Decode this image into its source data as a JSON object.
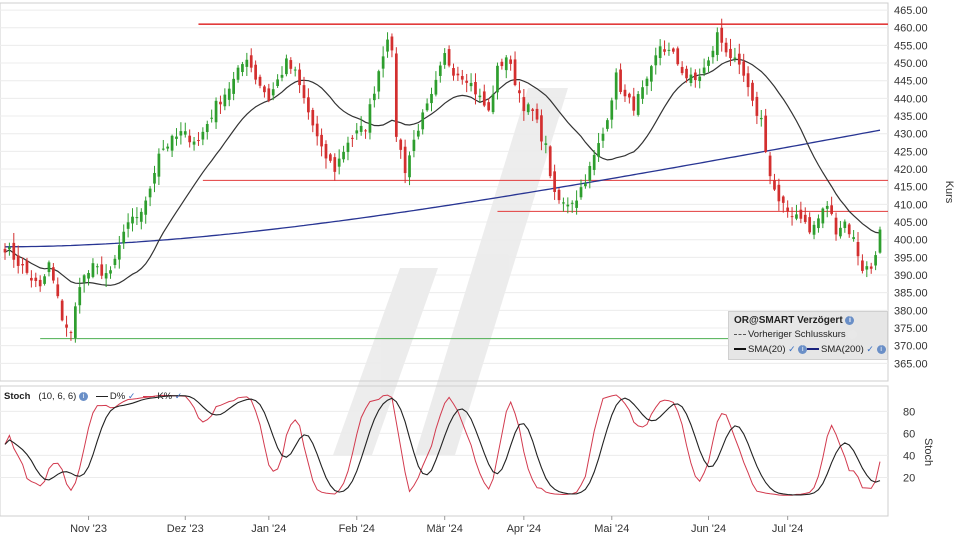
{
  "chart_data": [
    {
      "type": "candlestick",
      "title": "",
      "ylabel": "Kurs",
      "ylim": [
        360,
        467
      ],
      "y_ticks": [
        "365.00",
        "370.00",
        "375.00",
        "380.00",
        "385.00",
        "390.00",
        "395.00",
        "400.00",
        "405.00",
        "410.00",
        "415.00",
        "420.00",
        "425.00",
        "430.00",
        "435.00",
        "440.00",
        "445.00",
        "450.00",
        "455.00",
        "460.00",
        "465.00"
      ],
      "x_ticks": [
        "Nov '23",
        "Dez '23",
        "Jan '24",
        "Feb '24",
        "Mär '24",
        "Apr '24",
        "Mai '24",
        "Jun '24",
        "Jul '24"
      ],
      "close_anchors": [
        {
          "t": 0,
          "v": 398
        },
        {
          "t": 4,
          "v": 392
        },
        {
          "t": 8,
          "v": 386
        },
        {
          "t": 10,
          "v": 393
        },
        {
          "t": 13,
          "v": 378
        },
        {
          "t": 15,
          "v": 373
        },
        {
          "t": 17,
          "v": 388
        },
        {
          "t": 20,
          "v": 392
        },
        {
          "t": 24,
          "v": 390
        },
        {
          "t": 27,
          "v": 402
        },
        {
          "t": 32,
          "v": 410
        },
        {
          "t": 35,
          "v": 425
        },
        {
          "t": 40,
          "v": 430
        },
        {
          "t": 44,
          "v": 428
        },
        {
          "t": 48,
          "v": 438
        },
        {
          "t": 52,
          "v": 445
        },
        {
          "t": 55,
          "v": 452
        },
        {
          "t": 57,
          "v": 446
        },
        {
          "t": 60,
          "v": 440
        },
        {
          "t": 64,
          "v": 450
        },
        {
          "t": 66,
          "v": 447
        },
        {
          "t": 69,
          "v": 436
        },
        {
          "t": 72,
          "v": 425
        },
        {
          "t": 75,
          "v": 420
        },
        {
          "t": 78,
          "v": 428
        },
        {
          "t": 82,
          "v": 432
        },
        {
          "t": 85,
          "v": 448
        },
        {
          "t": 87,
          "v": 458
        },
        {
          "t": 88,
          "v": 452
        },
        {
          "t": 89,
          "v": 430
        },
        {
          "t": 91,
          "v": 420
        },
        {
          "t": 94,
          "v": 432
        },
        {
          "t": 97,
          "v": 440
        },
        {
          "t": 100,
          "v": 452
        },
        {
          "t": 102,
          "v": 448
        },
        {
          "t": 105,
          "v": 446
        },
        {
          "t": 108,
          "v": 440
        },
        {
          "t": 110,
          "v": 436
        },
        {
          "t": 112,
          "v": 448
        },
        {
          "t": 114,
          "v": 452
        },
        {
          "t": 116,
          "v": 445
        },
        {
          "t": 118,
          "v": 438
        },
        {
          "t": 120,
          "v": 436
        },
        {
          "t": 123,
          "v": 426
        },
        {
          "t": 125,
          "v": 412
        },
        {
          "t": 127,
          "v": 410
        },
        {
          "t": 130,
          "v": 412
        },
        {
          "t": 133,
          "v": 420
        },
        {
          "t": 136,
          "v": 430
        },
        {
          "t": 139,
          "v": 446
        },
        {
          "t": 141,
          "v": 440
        },
        {
          "t": 143,
          "v": 438
        },
        {
          "t": 146,
          "v": 444
        },
        {
          "t": 149,
          "v": 455
        },
        {
          "t": 152,
          "v": 452
        },
        {
          "t": 155,
          "v": 446
        },
        {
          "t": 157,
          "v": 445
        },
        {
          "t": 160,
          "v": 450
        },
        {
          "t": 162,
          "v": 458
        },
        {
          "t": 164,
          "v": 454
        },
        {
          "t": 166,
          "v": 450
        },
        {
          "t": 168,
          "v": 446
        },
        {
          "t": 170,
          "v": 438
        },
        {
          "t": 172,
          "v": 434
        },
        {
          "t": 174,
          "v": 418
        },
        {
          "t": 176,
          "v": 410
        },
        {
          "t": 178,
          "v": 408
        },
        {
          "t": 181,
          "v": 407
        },
        {
          "t": 183,
          "v": 402
        },
        {
          "t": 185,
          "v": 406
        },
        {
          "t": 187,
          "v": 410
        },
        {
          "t": 189,
          "v": 403
        },
        {
          "t": 191,
          "v": 405
        },
        {
          "t": 193,
          "v": 400
        },
        {
          "t": 195,
          "v": 392
        },
        {
          "t": 197,
          "v": 392
        },
        {
          "t": 199,
          "v": 402
        }
      ],
      "bars_count": 200,
      "x_tick_bar_index": [
        19,
        41,
        60,
        80,
        100,
        118,
        138,
        160,
        178
      ],
      "horizontal_lines": [
        {
          "value": 461.0,
          "color": "#e23b3b",
          "from_bar": 44
        },
        {
          "value": 416.8,
          "color": "#e23b3b",
          "from_bar": 45
        },
        {
          "value": 408.0,
          "color": "#e23b3b",
          "from_bar": 112
        },
        {
          "value": 372.0,
          "color": "#4caf50",
          "from_bar": 8
        }
      ],
      "legend": {
        "title": "OR@SMART Verzögert",
        "items": [
          {
            "label": "Vorheriger Schlusskurs",
            "color": "#555555",
            "style": "dashed"
          },
          {
            "label": "SMA(20)",
            "color": "#111111",
            "style": "solid"
          },
          {
            "label": "SMA(200)",
            "color": "#1a237e",
            "style": "solid"
          }
        ]
      },
      "colors": {
        "up": "#2e9e2e",
        "down": "#d32f2f",
        "sma20": "#333333",
        "sma200": "#283593"
      }
    },
    {
      "type": "line",
      "name": "Stoch",
      "ylabel": "Stoch",
      "ylim": [
        0,
        100
      ],
      "y_ticks": [
        "20",
        "40",
        "60",
        "80"
      ],
      "legend": {
        "label": "Stoch",
        "params": "(10, 6, 6)",
        "items": [
          {
            "label": "D%",
            "color": "#222222"
          },
          {
            "label": "K%",
            "color": "#d23a4e"
          }
        ]
      }
    }
  ]
}
